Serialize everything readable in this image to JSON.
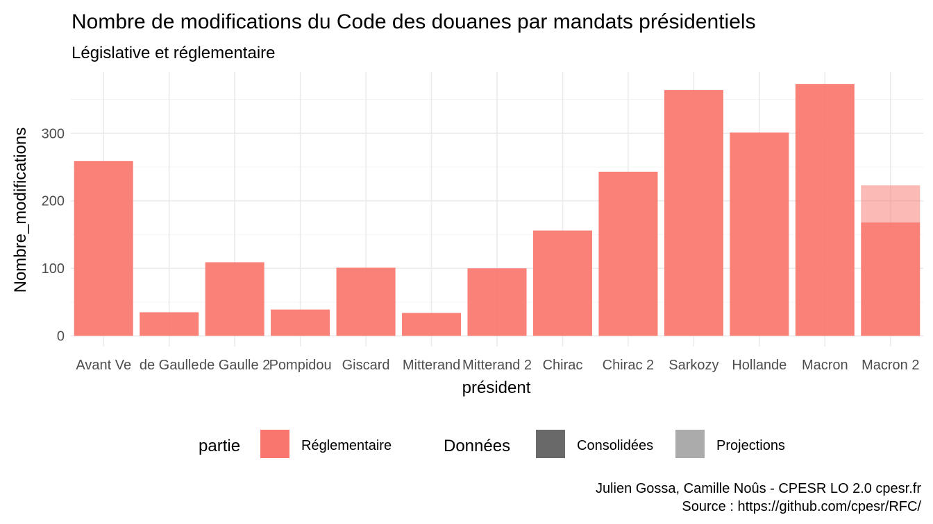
{
  "chart_data": {
    "type": "bar",
    "title": "Nombre de modifications du Code des douanes par mandats présidentiels",
    "subtitle": "Législative et réglementaire",
    "xlabel": "président",
    "ylabel": "Nombre_modifications",
    "categories": [
      "Avant Ve",
      "de Gaulle",
      "de Gaulle 2",
      "Pompidou",
      "Giscard",
      "Mitterand",
      "Mitterand 2",
      "Chirac",
      "Chirac 2",
      "Sarkozy",
      "Hollande",
      "Macron",
      "Macron 2"
    ],
    "series": [
      {
        "partie": "Réglementaire",
        "donnees": "Consolidées",
        "values": [
          259,
          35,
          109,
          39,
          101,
          34,
          100,
          156,
          243,
          364,
          301,
          373,
          168
        ]
      },
      {
        "partie": "Réglementaire",
        "donnees": "Projections",
        "values": [
          0,
          0,
          0,
          0,
          0,
          0,
          0,
          0,
          0,
          0,
          0,
          0,
          55
        ]
      }
    ],
    "ylim": [
      0,
      380
    ],
    "yticks": [
      0,
      100,
      200,
      300
    ],
    "grid": true,
    "legend_position": "bottom",
    "colors": {
      "bar": "#F8766D",
      "consolidated_swatch": "#696969",
      "projection_swatch": "#ababab"
    },
    "legend": [
      {
        "title": "partie",
        "items": [
          {
            "label": "Réglementaire",
            "color": "#F8766D"
          }
        ]
      },
      {
        "title": "Données",
        "items": [
          {
            "label": "Consolidées",
            "color": "#696969"
          },
          {
            "label": "Projections",
            "color": "#ababab"
          }
        ]
      }
    ]
  },
  "caption": {
    "line1": "Julien Gossa, Camille Noûs - CPESR LO 2.0 cpesr.fr",
    "line2": "Source : https://github.com/cpesr/RFC/"
  }
}
